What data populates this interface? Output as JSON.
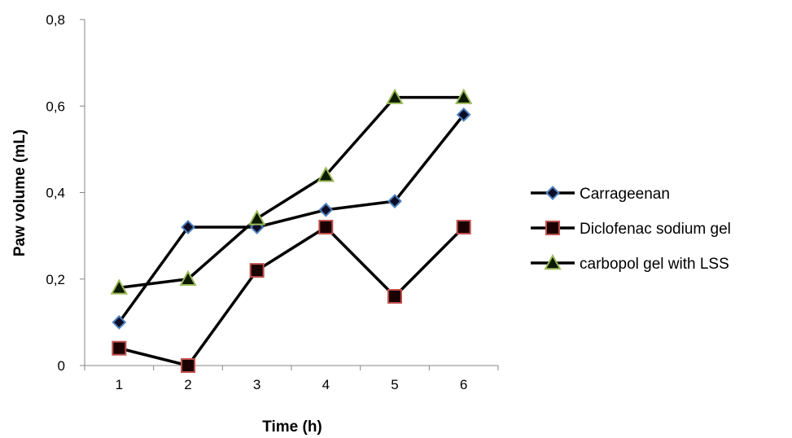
{
  "chart_data": {
    "type": "line",
    "title": "",
    "xlabel": "Time (h)",
    "ylabel": "Paw volume (mL)",
    "categories": [
      "1",
      "2",
      "3",
      "4",
      "5",
      "6"
    ],
    "ylim": [
      0,
      0.8
    ],
    "yticks": [
      0,
      0.2,
      0.4,
      0.6,
      0.8
    ],
    "ytick_labels": [
      "0",
      "0,2",
      "0,4",
      "0,6",
      "0,8"
    ],
    "grid": false,
    "legend_position": "right",
    "series": [
      {
        "name": "Carrageenan",
        "values": [
          0.1,
          0.32,
          0.32,
          0.36,
          0.38,
          0.58
        ],
        "marker": "diamond",
        "line_color": "#000000",
        "marker_fill": "#0d0d26",
        "marker_edge": "#4f81bd"
      },
      {
        "name": "Diclofenac sodium gel",
        "values": [
          0.04,
          0.0,
          0.22,
          0.32,
          0.16,
          0.32
        ],
        "marker": "square",
        "line_color": "#000000",
        "marker_fill": "#1a0000",
        "marker_edge": "#c0504d"
      },
      {
        "name": "carbopol gel with LSS",
        "values": [
          0.18,
          0.2,
          0.34,
          0.44,
          0.62,
          0.62
        ],
        "marker": "triangle",
        "line_color": "#000000",
        "marker_fill": "#0d1a00",
        "marker_edge": "#9bbb59"
      }
    ]
  }
}
